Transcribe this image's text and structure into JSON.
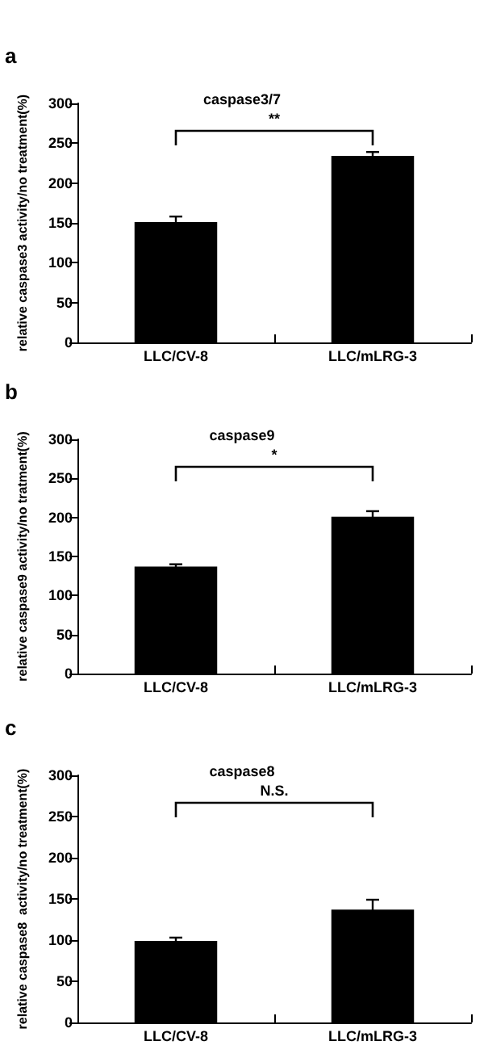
{
  "chart_data": [
    {
      "type": "bar",
      "title": "caspase3/7",
      "ylabel": "relative caspase3 activity/no treatment(%)",
      "categories": [
        "LLC/CV-8",
        "LLC/mLRG-3"
      ],
      "values": [
        151,
        234
      ],
      "errors": [
        7,
        5
      ],
      "color": "#000000",
      "ylim": [
        0,
        300
      ],
      "yticks": [
        0,
        50,
        100,
        150,
        200,
        250,
        300
      ],
      "grid": false,
      "annotations": [
        "a",
        "**"
      ]
    },
    {
      "type": "bar",
      "title": "caspase9",
      "ylabel": "relative caspase9 activity/no tratment(%)",
      "categories": [
        "LLC/CV-8",
        "LLC/mLRG-3"
      ],
      "values": [
        137,
        201
      ],
      "errors": [
        3,
        7
      ],
      "color": "#000000",
      "ylim": [
        0,
        300
      ],
      "yticks": [
        0,
        50,
        100,
        150,
        200,
        250,
        300
      ],
      "grid": false,
      "annotations": [
        "b",
        "*"
      ]
    },
    {
      "type": "bar",
      "title": "caspase8",
      "ylabel": "relative caspase8  activity/no treatment(%)",
      "categories": [
        "LLC/CV-8",
        "LLC/mLRG-3"
      ],
      "values": [
        99,
        137
      ],
      "errors": [
        4,
        12
      ],
      "color": "#000000",
      "ylim": [
        0,
        300
      ],
      "yticks": [
        0,
        50,
        100,
        150,
        200,
        250,
        300
      ],
      "grid": false,
      "annotations": [
        "c",
        "N.S."
      ]
    }
  ]
}
